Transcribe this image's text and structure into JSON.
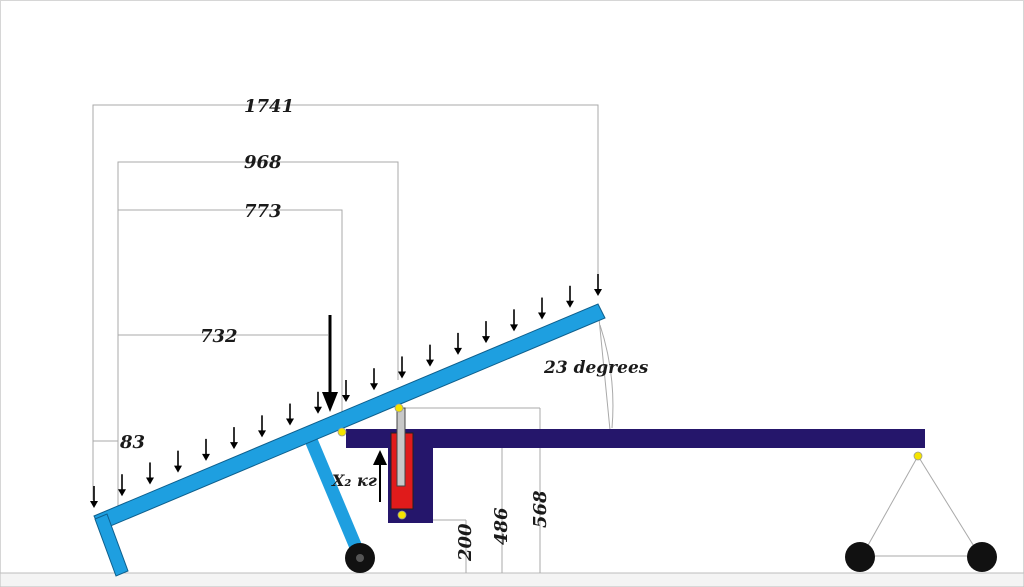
{
  "dimensions": {
    "d1741": "1741",
    "d968": "968",
    "d773": "773",
    "d732": "732",
    "d83": "83",
    "d200": "200",
    "d486": "486",
    "d568": "568"
  },
  "angle_label": "23 degrees",
  "force_label": "X₂ кг",
  "colors": {
    "ramp": "#1e9fe0",
    "frame": "#25166b",
    "cylinder": "#e01b1b",
    "rod": "#c8c8c8",
    "pivot": "#f5e400",
    "wheel": "#111111"
  }
}
